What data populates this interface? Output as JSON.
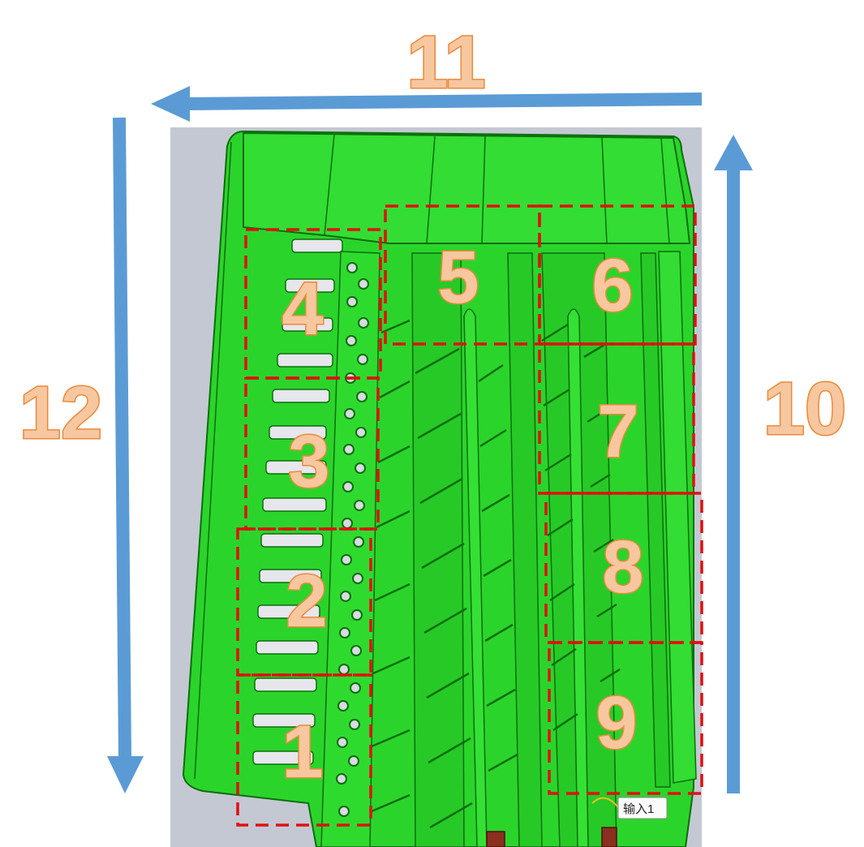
{
  "arrows": {
    "top_label": "11",
    "left_label": "12",
    "right_label": "10",
    "color": "#5b9bd5"
  },
  "zones": [
    {
      "label": "1"
    },
    {
      "label": "2"
    },
    {
      "label": "3"
    },
    {
      "label": "4"
    },
    {
      "label": "5"
    },
    {
      "label": "6"
    },
    {
      "label": "7"
    },
    {
      "label": "8"
    },
    {
      "label": "9"
    }
  ],
  "colors": {
    "part_green": "#2bd42b",
    "part_dark": "#0b6e0b",
    "zone_border": "#e01010",
    "label_fill": "#f7c7a0",
    "label_stroke": "#e98a3a",
    "background": "#c4c8d2"
  },
  "tooltip": {
    "text": "输入1"
  }
}
